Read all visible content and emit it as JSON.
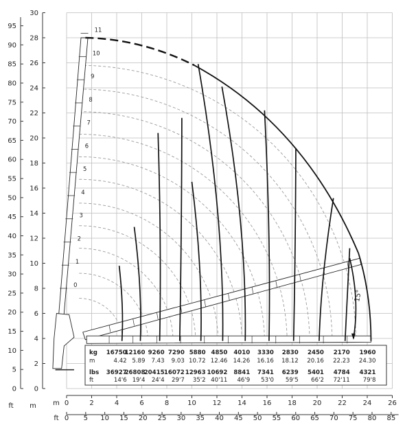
{
  "axes": {
    "m_left": [
      "0",
      "2",
      "4",
      "6",
      "8",
      "10",
      "12",
      "14",
      "16",
      "18",
      "20",
      "22",
      "24",
      "26",
      "28",
      "30"
    ],
    "ft_left": [
      "0",
      "5",
      "10",
      "15",
      "20",
      "25",
      "30",
      "35",
      "40",
      "45",
      "50",
      "55",
      "60",
      "65",
      "70",
      "75",
      "80",
      "85",
      "90",
      "95"
    ],
    "m_bottom": [
      "0",
      "2",
      "4",
      "6",
      "8",
      "10",
      "12",
      "14",
      "16",
      "18",
      "20",
      "22",
      "24",
      "26"
    ],
    "ft_bottom": [
      "0",
      "5",
      "10",
      "15",
      "20",
      "25",
      "30",
      "35",
      "40",
      "45",
      "50",
      "55",
      "60",
      "65",
      "70",
      "75",
      "80",
      "85"
    ],
    "unit_m": "m",
    "unit_ft": "ft"
  },
  "boom_sections": [
    "0",
    "1",
    "2",
    "3",
    "4",
    "5",
    "6",
    "7",
    "8",
    "9",
    "10",
    "11"
  ],
  "angle_label": "15°",
  "table": {
    "row_labels": {
      "kg": "kg",
      "m": "m",
      "lbs": "lbs",
      "ft": "ft"
    },
    "kg": [
      "16750",
      "12160",
      "9260",
      "7290",
      "5880",
      "4850",
      "4010",
      "3330",
      "2830",
      "2450",
      "2170",
      "1960"
    ],
    "m": [
      "4.42",
      "5.89",
      "7.43",
      "9.03",
      "10.72",
      "12.46",
      "14.26",
      "16.16",
      "18.12",
      "20.16",
      "22.23",
      "24.30"
    ],
    "lbs": [
      "36927",
      "26808",
      "20415",
      "16072",
      "12963",
      "10692",
      "8841",
      "7341",
      "6239",
      "5401",
      "4784",
      "4321"
    ],
    "ft": [
      "14'6",
      "19'4",
      "24'4",
      "29'7",
      "35'2",
      "40'11",
      "46'9",
      "53'0",
      "59'5",
      "66'2",
      "72'11",
      "79'8"
    ]
  },
  "chart_data": {
    "type": "load-range-diagram",
    "x_unit": "m",
    "y_unit": "m",
    "xlim": [
      0,
      26
    ],
    "ylim": [
      0,
      30
    ],
    "slew_angle_deg": 15,
    "load_points": [
      {
        "kg": 16750,
        "reach_m": 4.42,
        "lbs": 36927,
        "reach_ft": "14'6"
      },
      {
        "kg": 12160,
        "reach_m": 5.89,
        "lbs": 26808,
        "reach_ft": "19'4"
      },
      {
        "kg": 9260,
        "reach_m": 7.43,
        "lbs": 20415,
        "reach_ft": "24'4"
      },
      {
        "kg": 7290,
        "reach_m": 9.03,
        "lbs": 16072,
        "reach_ft": "29'7"
      },
      {
        "kg": 5880,
        "reach_m": 10.72,
        "lbs": 12963,
        "reach_ft": "35'2"
      },
      {
        "kg": 4850,
        "reach_m": 12.46,
        "lbs": 10692,
        "reach_ft": "40'11"
      },
      {
        "kg": 4010,
        "reach_m": 14.26,
        "lbs": 8841,
        "reach_ft": "46'9"
      },
      {
        "kg": 3330,
        "reach_m": 16.16,
        "lbs": 7341,
        "reach_ft": "53'0"
      },
      {
        "kg": 2830,
        "reach_m": 18.12,
        "lbs": 6239,
        "reach_ft": "59'5"
      },
      {
        "kg": 2450,
        "reach_m": 20.16,
        "lbs": 5401,
        "reach_ft": "66'2"
      },
      {
        "kg": 2170,
        "reach_m": 22.23,
        "lbs": 4784,
        "reach_ft": "72'11"
      },
      {
        "kg": 1960,
        "reach_m": 24.3,
        "lbs": 4321,
        "reach_ft": "79'8"
      }
    ],
    "curve_tops_m": [
      [
        4.2,
        9.8
      ],
      [
        5.4,
        12.9
      ],
      [
        7.3,
        20.4
      ],
      [
        9.2,
        21.6
      ],
      [
        10.0,
        16.5
      ],
      [
        10.5,
        25.9
      ],
      [
        12.4,
        24.1
      ],
      [
        15.8,
        22.2
      ],
      [
        18.3,
        19.2
      ],
      [
        21.3,
        15.2
      ],
      [
        22.6,
        11.2
      ]
    ]
  }
}
